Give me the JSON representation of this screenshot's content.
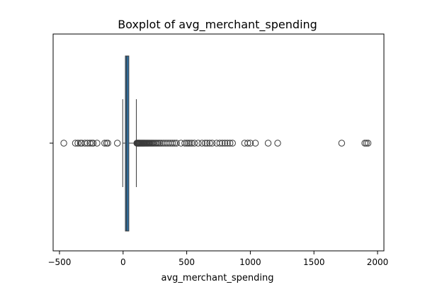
{
  "chart_data": {
    "type": "boxplot",
    "orientation": "horizontal",
    "title": "Boxplot of avg_merchant_spending",
    "xlabel": "avg_merchant_spending",
    "ylabel": "",
    "xlim": [
      -550,
      2050
    ],
    "xticks": [
      -500,
      0,
      500,
      1000,
      1500,
      2000
    ],
    "xtick_labels": [
      "−500",
      "0",
      "500",
      "1000",
      "1500",
      "2000"
    ],
    "grid": false,
    "box": {
      "whisker_low": -3,
      "q1": 18,
      "median": 28,
      "q3": 45,
      "whisker_high": 104,
      "box_color": "#2e78b0",
      "line_color": "#3a3a3a"
    },
    "outliers": [
      -466,
      -375,
      -355,
      -335,
      -325,
      -300,
      -280,
      -260,
      -245,
      -235,
      -205,
      -145,
      -130,
      -120,
      -45,
      108,
      112,
      116,
      120,
      124,
      128,
      133,
      138,
      143,
      148,
      153,
      158,
      163,
      168,
      174,
      180,
      186,
      192,
      198,
      205,
      212,
      220,
      228,
      236,
      245,
      255,
      265,
      276,
      288,
      300,
      315,
      330,
      345,
      360,
      375,
      390,
      405,
      420,
      455,
      485,
      500,
      512,
      525,
      540,
      560,
      590,
      620,
      645,
      660,
      680,
      700,
      735,
      760,
      780,
      800,
      820,
      840,
      860,
      955,
      980,
      1000,
      1040,
      1140,
      1215,
      1718,
      1900,
      1912,
      1925
    ],
    "outlier_color": "#3a3a3a"
  }
}
